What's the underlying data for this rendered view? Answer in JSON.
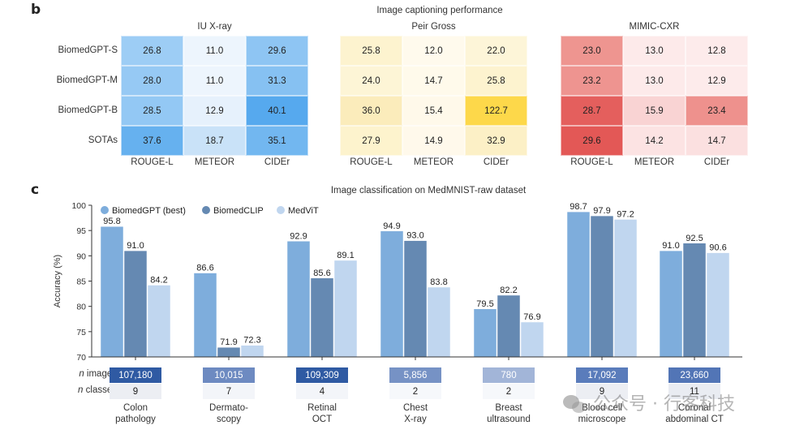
{
  "chart_data": [
    {
      "type": "heatmap",
      "panel_label": "b",
      "title": "Image captioning performance",
      "rows": [
        "BiomedGPT-S",
        "BiomedGPT-M",
        "BiomedGPT-B",
        "SOTAs"
      ],
      "columns": [
        "ROUGE-L",
        "METEOR",
        "CIDEr"
      ],
      "datasets": [
        {
          "name": "IU X-ray",
          "colormap": "blue",
          "values": [
            [
              26.8,
              11.0,
              29.6
            ],
            [
              28.0,
              11.0,
              31.3
            ],
            [
              28.5,
              12.9,
              40.1
            ],
            [
              37.6,
              18.7,
              35.1
            ]
          ],
          "cell_colors": [
            [
              "#9dcdf5",
              "#edf5fd",
              "#8ec5f3"
            ],
            [
              "#96c9f4",
              "#edf5fd",
              "#86c1f2"
            ],
            [
              "#93c8f4",
              "#e6f1fc",
              "#56a9ee"
            ],
            [
              "#66b1ef",
              "#c9e2f8",
              "#72b7f0"
            ]
          ]
        },
        {
          "name": "Peir Gross",
          "colormap": "yellow",
          "values": [
            [
              25.8,
              12.0,
              22.0
            ],
            [
              24.0,
              14.7,
              25.8
            ],
            [
              36.0,
              15.4,
              122.7
            ],
            [
              27.9,
              14.9,
              32.9
            ]
          ],
          "cell_colors": [
            [
              "#fdf3cf",
              "#fffaed",
              "#fdf5d8"
            ],
            [
              "#fdf5d6",
              "#fffaeb",
              "#fdf3cf"
            ],
            [
              "#fbecbb",
              "#fff9ea",
              "#fdd84a"
            ],
            [
              "#fdf3cd",
              "#fff9eb",
              "#fcf0c6"
            ]
          ]
        },
        {
          "name": "MIMIC-CXR",
          "colormap": "red",
          "values": [
            [
              23.0,
              13.0,
              12.8
            ],
            [
              23.2,
              13.0,
              12.9
            ],
            [
              28.7,
              15.9,
              23.4
            ],
            [
              29.6,
              14.2,
              14.7
            ]
          ],
          "cell_colors": [
            [
              "#ee9590",
              "#fdeaea",
              "#fdebeb"
            ],
            [
              "#ee9490",
              "#fdeaea",
              "#fdebeb"
            ],
            [
              "#e45f5d",
              "#f9d3d3",
              "#ee918d"
            ],
            [
              "#e35856",
              "#fce3e3",
              "#fbe0e0"
            ]
          ]
        }
      ]
    },
    {
      "type": "bar",
      "panel_label": "c",
      "title": "Image classification on MedMNIST-raw dataset",
      "ylabel": "Accuracy (%)",
      "xlabel": "",
      "ylim": [
        70,
        100
      ],
      "yticks": [
        70,
        75,
        80,
        85,
        90,
        95,
        100
      ],
      "grid": false,
      "legend_position": "top-left",
      "categories": [
        "Colon\npathology",
        "Dermato-\nscopy",
        "Retinal\nOCT",
        "Chest\nX-ray",
        "Breast\nultrasound",
        "Blood cell\nmicroscope",
        "Coronal\nabdominal CT"
      ],
      "series": [
        {
          "name": "BiomedGPT (best)",
          "color": "#7eaddc",
          "values": [
            95.8,
            86.6,
            92.9,
            94.9,
            79.5,
            98.7,
            91.0
          ]
        },
        {
          "name": "BiomedCLIP",
          "color": "#6589b2",
          "values": [
            91.0,
            71.9,
            85.6,
            93.0,
            82.2,
            97.9,
            92.5
          ]
        },
        {
          "name": "MedViT",
          "color": "#c0d6ef",
          "values": [
            84.2,
            72.3,
            89.1,
            83.8,
            76.9,
            97.2,
            90.6
          ]
        }
      ],
      "n_images_label_italic": "n",
      "n_images_label_rest": " images",
      "n_classes_label_italic": "n",
      "n_classes_label_rest": " classes",
      "n_images": [
        "107,180",
        "10,015",
        "109,309",
        "5,856",
        "780",
        "17,092",
        "23,660"
      ],
      "n_images_colors": [
        "#2f5aa3",
        "#6d8ac1",
        "#2f5aa3",
        "#7692c5",
        "#a2b5d8",
        "#5a7cbb",
        "#5275b6"
      ],
      "n_classes": [
        "9",
        "7",
        "4",
        "2",
        "2",
        "9",
        "11"
      ],
      "n_classes_colors": [
        "#eceef3",
        "#f3f5f9",
        "#f3f5f9",
        "#f6f8fb",
        "#f6f8fb",
        "#eceef3",
        "#e9ecf2"
      ]
    }
  ],
  "watermark": "公众号 · 行客科技"
}
